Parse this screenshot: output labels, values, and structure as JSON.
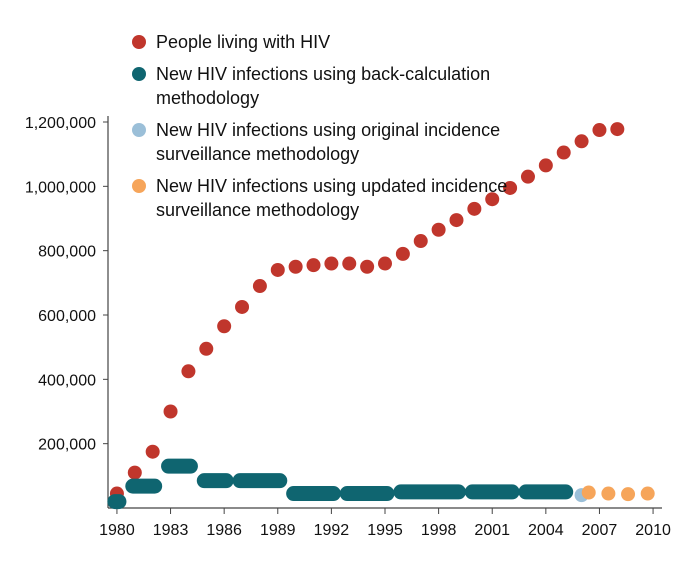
{
  "colors": {
    "plwh": "#c0362c",
    "back_calc": "#0f6570",
    "original": "#9bbfd8",
    "updated": "#f6a55a",
    "axis": "#444444",
    "text": "#111111"
  },
  "chart_data": {
    "type": "scatter",
    "title": "",
    "xlabel": "",
    "ylabel": "",
    "xlim": [
      1979.5,
      2010.5
    ],
    "ylim": [
      0,
      1200000
    ],
    "grid": false,
    "legend_position": "top-left",
    "x_ticks": [
      1980,
      1983,
      1986,
      1989,
      1992,
      1995,
      1998,
      2001,
      2004,
      2007,
      2010
    ],
    "x_tick_labels": [
      "1980",
      "1983",
      "1986",
      "1989",
      "1992",
      "1995",
      "1998",
      "2001",
      "2004",
      "2007",
      "2010"
    ],
    "y_ticks": [
      200000,
      400000,
      600000,
      800000,
      1000000,
      1200000
    ],
    "y_tick_labels": [
      "200,000",
      "400,000",
      "600,000",
      "800,000",
      "1,000,000",
      "1,200,000"
    ],
    "series": [
      {
        "name": "People living with HIV",
        "color": "#c0362c",
        "marker": "circle",
        "x": [
          1980,
          1981,
          1982,
          1983,
          1984,
          1985,
          1986,
          1987,
          1988,
          1989,
          1990,
          1991,
          1992,
          1993,
          1994,
          1995,
          1996,
          1997,
          1998,
          1999,
          2000,
          2001,
          2002,
          2003,
          2004,
          2005,
          2006,
          2007,
          2008
        ],
        "y": [
          45000,
          110000,
          175000,
          300000,
          425000,
          495000,
          565000,
          625000,
          690000,
          740000,
          750000,
          755000,
          760000,
          760000,
          750000,
          760000,
          790000,
          830000,
          865000,
          895000,
          930000,
          960000,
          995000,
          1030000,
          1065000,
          1105000,
          1140000,
          1175000,
          1178000
        ]
      },
      {
        "name": "New HIV infections using back-calculation methodology",
        "color": "#0f6570",
        "marker": "segment",
        "segments": [
          {
            "x0": 1980,
            "x1": 1980,
            "y": 20000
          },
          {
            "x0": 1981,
            "x1": 1982,
            "y": 68000
          },
          {
            "x0": 1983,
            "x1": 1984,
            "y": 130000
          },
          {
            "x0": 1985,
            "x1": 1986,
            "y": 85000
          },
          {
            "x0": 1987,
            "x1": 1989,
            "y": 85000
          },
          {
            "x0": 1990,
            "x1": 1992,
            "y": 45000
          },
          {
            "x0": 1993,
            "x1": 1995,
            "y": 45000
          },
          {
            "x0": 1996,
            "x1": 1999,
            "y": 50000
          },
          {
            "x0": 2000,
            "x1": 2002,
            "y": 50000
          },
          {
            "x0": 2003,
            "x1": 2005,
            "y": 50000
          }
        ]
      },
      {
        "name": "New HIV infections using original incidence surveillance methodology",
        "color": "#9bbfd8",
        "marker": "circle",
        "x": [
          2006
        ],
        "y": [
          40000
        ]
      },
      {
        "name": "New HIV infections using updated incidence surveillance methodology",
        "color": "#f6a55a",
        "marker": "circle",
        "x": [
          2006.4,
          2007.5,
          2008.6,
          2009.7
        ],
        "y": [
          48000,
          45000,
          43000,
          45000
        ]
      }
    ]
  },
  "legend": {
    "items": [
      {
        "label": "People living with HIV",
        "color": "#c0362c"
      },
      {
        "label": "New HIV infections using back-calculation methodology",
        "color": "#0f6570"
      },
      {
        "label": "New HIV infections using original incidence surveillance methodology",
        "color": "#9bbfd8"
      },
      {
        "label": "New HIV infections using updated incidence surveillance methodology",
        "color": "#f6a55a"
      }
    ]
  }
}
